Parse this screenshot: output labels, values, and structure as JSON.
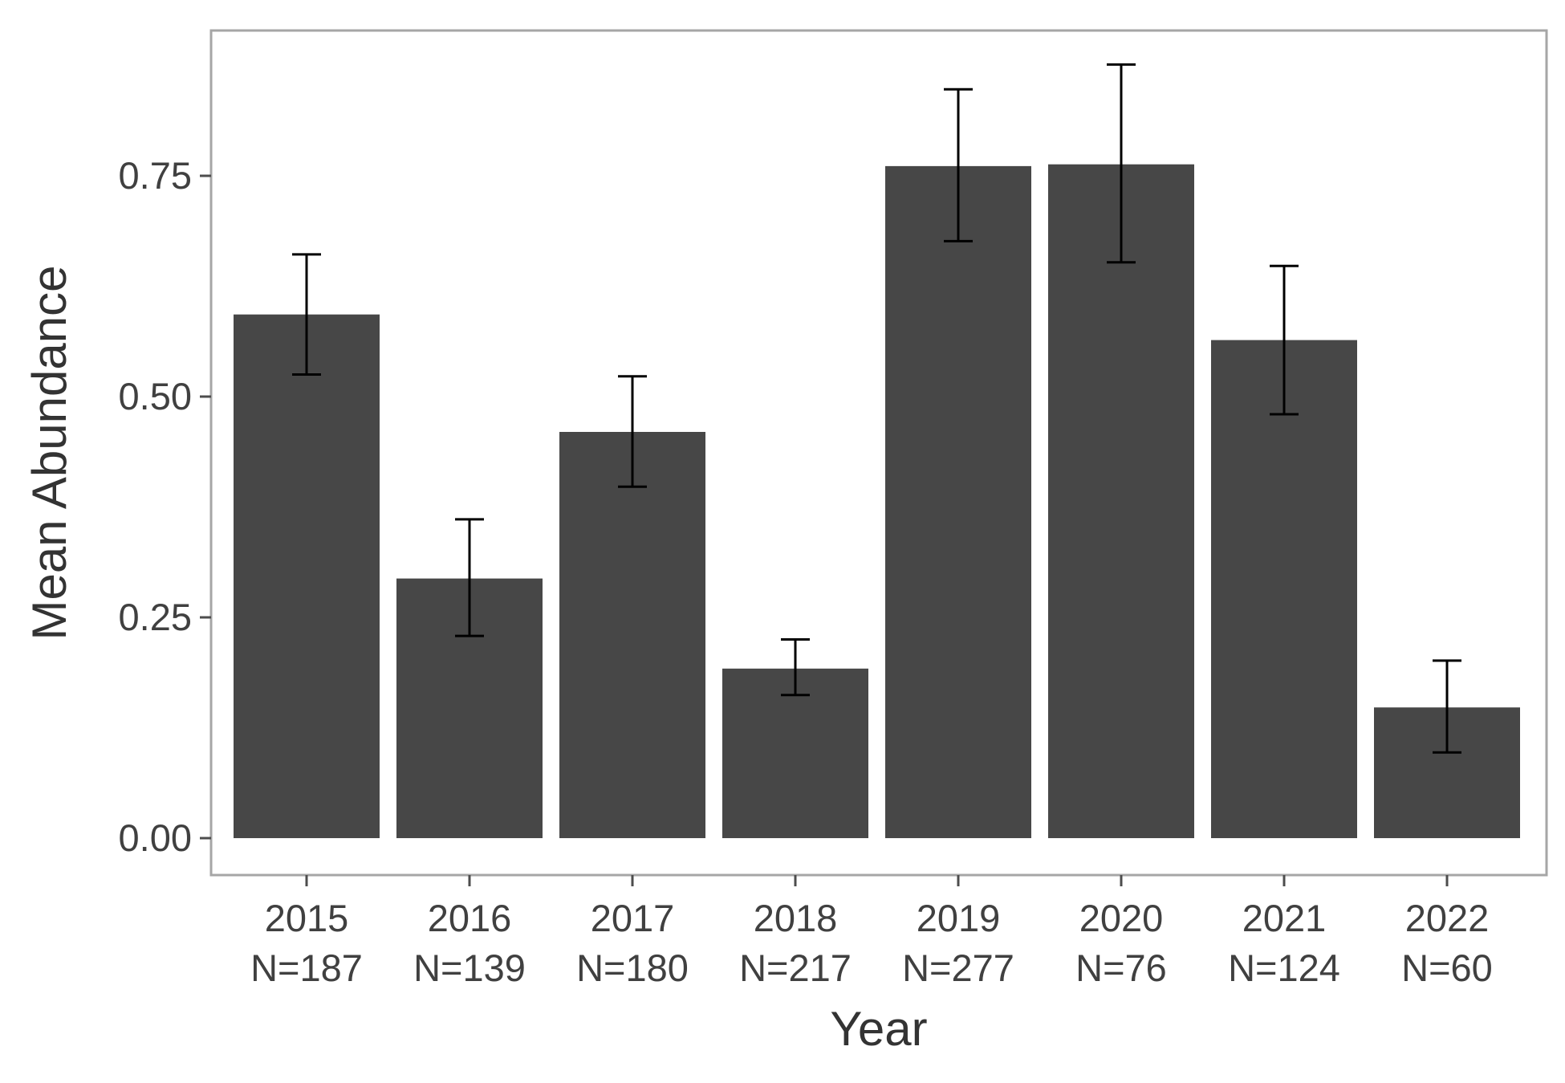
{
  "chart_data": {
    "type": "bar",
    "title": "",
    "xlabel": "Year",
    "ylabel": "Mean Abundance",
    "ylim": [
      -0.045,
      0.915
    ],
    "y_ticks": [
      0.0,
      0.25,
      0.5,
      0.75
    ],
    "y_tick_labels": [
      "0.00",
      "0.25",
      "0.50",
      "0.75"
    ],
    "categories": [
      "2015",
      "2016",
      "2017",
      "2018",
      "2019",
      "2020",
      "2021",
      "2022"
    ],
    "sample_sizes": [
      "N=187",
      "N=139",
      "N=180",
      "N=217",
      "N=277",
      "N=76",
      "N=124",
      "N=60"
    ],
    "values": [
      0.593,
      0.294,
      0.46,
      0.192,
      0.761,
      0.763,
      0.564,
      0.148
    ],
    "error_low": [
      0.525,
      0.229,
      0.398,
      0.162,
      0.676,
      0.652,
      0.48,
      0.097
    ],
    "error_high": [
      0.661,
      0.361,
      0.523,
      0.225,
      0.848,
      0.876,
      0.648,
      0.201
    ],
    "grid": false,
    "legend": "none",
    "colors": {
      "bar": "#474747",
      "error_bar": "#000000",
      "panel_border": "#a6a6a6",
      "tick": "#4d4d4d",
      "tick_text": "#404040",
      "axis_title": "#333333"
    }
  }
}
